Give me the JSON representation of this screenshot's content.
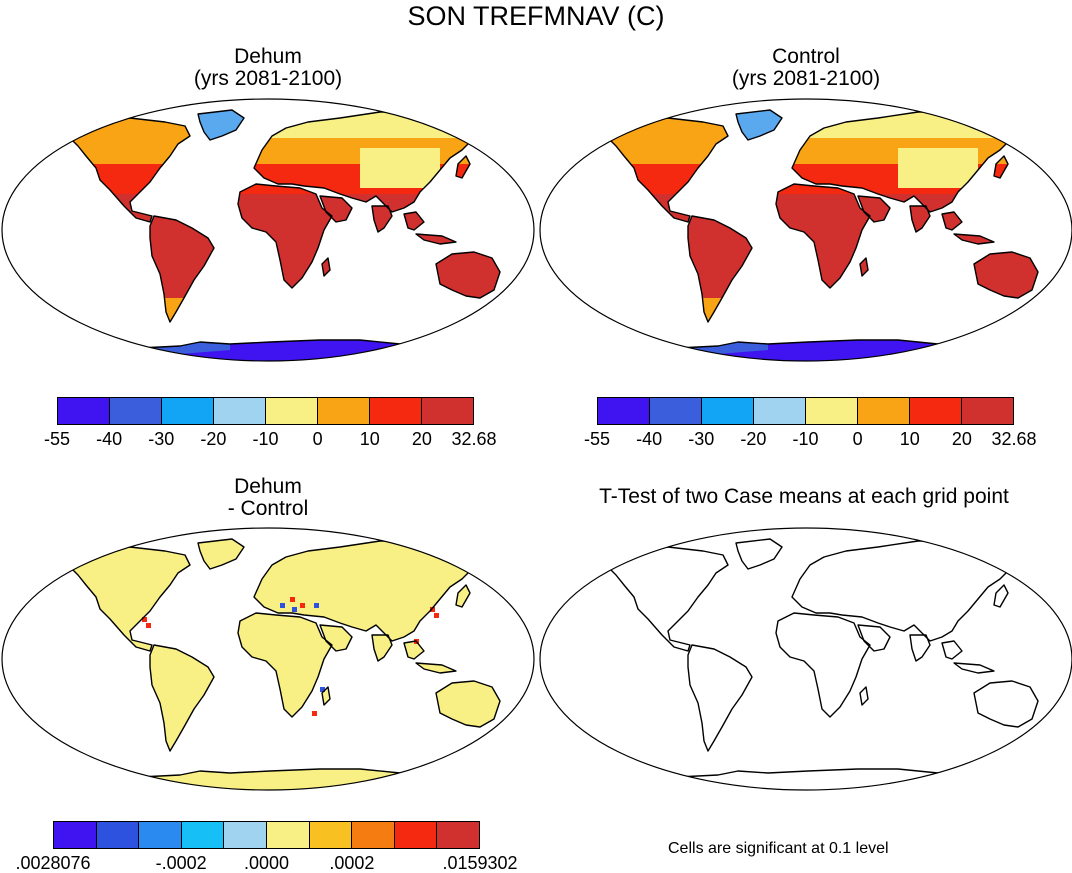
{
  "title": "SON TREFMNAV (C)",
  "panels": [
    {
      "id": "dehum",
      "title_line1": "Dehum",
      "title_line2": "(yrs 2081-2100)",
      "style": "full"
    },
    {
      "id": "control",
      "title_line1": "Control",
      "title_line2": "(yrs 2081-2100)",
      "style": "full"
    },
    {
      "id": "diff",
      "title_line1": "Dehum",
      "title_line2": "- Control",
      "style": "diff"
    },
    {
      "id": "ttest",
      "title_line1": "T-Test of two Case means at each grid point",
      "title_line2": "",
      "style": "outline"
    }
  ],
  "colorbar_temp": {
    "colors": [
      "#3f14f0",
      "#3b5fdc",
      "#12a5f5",
      "#9fd3ef",
      "#f8ef85",
      "#f8a414",
      "#f52810",
      "#d0302e"
    ],
    "labels": [
      "-55",
      "-40",
      "-30",
      "-20",
      "-10",
      "0",
      "10",
      "20",
      "32.68"
    ]
  },
  "colorbar_diff": {
    "colors": [
      "#3f14f0",
      "#2d52e0",
      "#2a8af0",
      "#17bff7",
      "#9fd3ef",
      "#f8ef85",
      "#f8c020",
      "#f57c10",
      "#f52810",
      "#d0302e"
    ],
    "labels": [
      ".0028076",
      "-.0002",
      ".0000",
      ".0002",
      ".0159302"
    ],
    "label_positions": [
      0,
      3,
      5,
      7,
      10
    ]
  },
  "significance_note": "Cells are significant at 0.1 level",
  "region_colors": {
    "ocean": "#ffffff",
    "outline": "#000000",
    "greenland": "#5aa8ee",
    "antarctica_coast": "#3b5fdc",
    "antarctica_interior": "#3f14f0",
    "tropics": "#d0302e",
    "mid_lat": "#f52810",
    "north": "#f8a414",
    "arctic": "#f8ef85",
    "diff_land": "#f8ef85",
    "diff_hot": "#f52810",
    "diff_cold": "#2d52e0"
  }
}
